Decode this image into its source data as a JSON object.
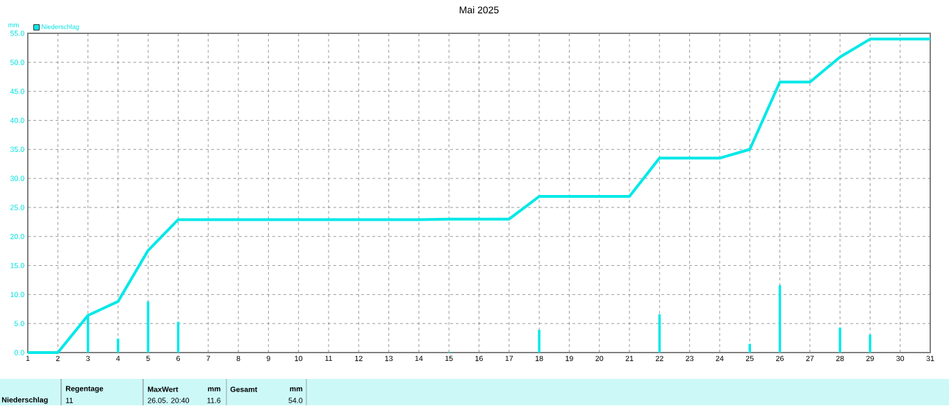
{
  "chart_data": {
    "type": "bar",
    "title": "Mai 2025",
    "ylabel": "mm",
    "x": [
      1,
      2,
      3,
      4,
      5,
      6,
      7,
      8,
      9,
      10,
      11,
      12,
      13,
      14,
      15,
      16,
      17,
      18,
      19,
      20,
      21,
      22,
      23,
      24,
      25,
      26,
      27,
      28,
      29,
      30,
      31
    ],
    "series": [
      {
        "name": "Niederschlag",
        "color": "#00e8e8",
        "values": [
          0,
          0,
          6.4,
          2.4,
          8.8,
          5.3,
          0,
          0,
          0,
          0,
          0,
          0,
          0,
          0,
          0.1,
          0,
          0,
          3.9,
          0,
          0,
          0,
          6.6,
          0,
          0,
          1.5,
          11.6,
          0,
          4.3,
          3.1,
          0,
          0
        ]
      },
      {
        "type": "line",
        "color": "#00e8e8",
        "values": [
          0,
          0,
          6.4,
          8.8,
          17.6,
          22.9,
          22.9,
          22.9,
          22.9,
          22.9,
          22.9,
          22.9,
          22.9,
          22.9,
          23.0,
          23.0,
          23.0,
          26.9,
          26.9,
          26.9,
          26.9,
          33.5,
          33.5,
          33.5,
          35.0,
          46.6,
          46.6,
          50.9,
          54.0,
          54.0,
          54.0
        ]
      }
    ],
    "xlim": [
      1,
      31
    ],
    "xticks": [
      1,
      2,
      3,
      4,
      5,
      6,
      7,
      8,
      9,
      10,
      11,
      12,
      13,
      14,
      15,
      16,
      17,
      18,
      19,
      20,
      21,
      22,
      23,
      24,
      25,
      26,
      27,
      28,
      29,
      30,
      31
    ],
    "ylim": [
      0,
      55
    ],
    "yticks": [
      {
        "value": 0,
        "label": "0.0"
      },
      {
        "value": 5,
        "label": "5.0"
      },
      {
        "value": 10,
        "label": "10.0"
      },
      {
        "value": 15,
        "label": "15.0"
      },
      {
        "value": 20,
        "label": "20.0"
      },
      {
        "value": 25,
        "label": "25.0"
      },
      {
        "value": 30,
        "label": "30.0"
      },
      {
        "value": 35,
        "label": "35.0"
      },
      {
        "value": 40,
        "label": "40.0"
      },
      {
        "value": 45,
        "label": "45.0"
      },
      {
        "value": 50,
        "label": "50.0"
      },
      {
        "value": 55,
        "label": "55.0"
      }
    ],
    "grid": true,
    "legend": "top left",
    "annotations": [
      "Niederschlag",
      "Regentage",
      "11",
      "MaxWert",
      "mm",
      "26.05.  20:40",
      "11.6",
      "Gesamt",
      "mm",
      "54.0"
    ]
  }
}
